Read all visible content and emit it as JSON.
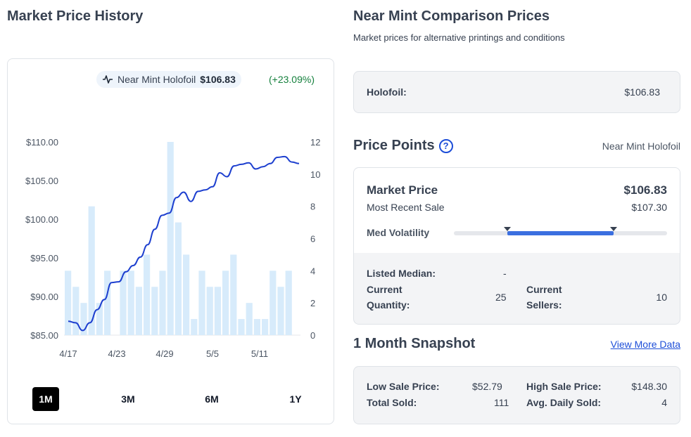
{
  "left": {
    "title": "Market Price History",
    "legend": {
      "condition": "Near Mint Holofoil",
      "price": "$106.83",
      "change": "(+23.09%)"
    },
    "range_buttons": [
      "1M",
      "3M",
      "6M",
      "1Y"
    ],
    "active_range": "1M"
  },
  "chart_data": {
    "type": "line",
    "title": "",
    "x_ticks": [
      "4/17",
      "4/23",
      "4/29",
      "5/5",
      "5/11"
    ],
    "y_left_ticks": [
      "$110.00",
      "$105.00",
      "$100.00",
      "$95.00",
      "$90.00",
      "$85.00"
    ],
    "y_right_ticks": [
      "12",
      "10",
      "8",
      "6",
      "4",
      "2",
      "0"
    ],
    "ylim_price": [
      85,
      110
    ],
    "ylim_volume": [
      0,
      12
    ],
    "series": [
      {
        "kind": "line",
        "color": "#1d3fcf",
        "values": [
          86.8,
          86.6,
          85.6,
          86.6,
          88.3,
          89.6,
          91.8,
          91.9,
          93.2,
          94.0,
          95.1,
          96.7,
          98.7,
          100.5,
          100.8,
          102.8,
          103.5,
          102.3,
          103.6,
          103.8,
          104.2,
          106.0,
          105.5,
          106.9,
          107.1,
          107.3,
          106.5,
          106.8,
          107.2,
          108.0,
          108.1,
          107.4,
          107.2
        ]
      },
      {
        "kind": "bar",
        "color": "#d7ebfb",
        "values": [
          4,
          3,
          2,
          8,
          2,
          4,
          0,
          4,
          4,
          3,
          5,
          3,
          4,
          12,
          7,
          5,
          1,
          4,
          3,
          3,
          4,
          5,
          1,
          2,
          1,
          1,
          4,
          3,
          4,
          0
        ]
      }
    ]
  },
  "right": {
    "title": "Near Mint Comparison Prices",
    "subtitle": "Market prices for alternative printings and conditions",
    "holofoil": {
      "label": "Holofoil:",
      "value": "$106.83"
    },
    "price_points": {
      "title": "Price Points",
      "condition": "Near Mint Holofoil",
      "market_price_label": "Market Price",
      "market_price": "$106.83",
      "recent_sale_label": "Most Recent Sale",
      "recent_sale": "$107.30",
      "volatility_label": "Med Volatility",
      "volatility_level": 0.5,
      "listed_median_label": "Listed Median:",
      "listed_median": "-",
      "current_quantity_label_1": "Current",
      "current_quantity_label_2": "Quantity:",
      "current_quantity": "25",
      "current_sellers_label_1": "Current",
      "current_sellers_label_2": "Sellers:",
      "current_sellers": "10"
    },
    "snapshot": {
      "title": "1 Month Snapshot",
      "link": "View More Data",
      "low_sale_label": "Low Sale Price:",
      "low_sale": "$52.79",
      "high_sale_label": "High Sale Price:",
      "high_sale": "$148.30",
      "total_sold_label": "Total Sold:",
      "total_sold": "111",
      "avg_daily_label": "Avg. Daily Sold:",
      "avg_daily": "4"
    }
  }
}
